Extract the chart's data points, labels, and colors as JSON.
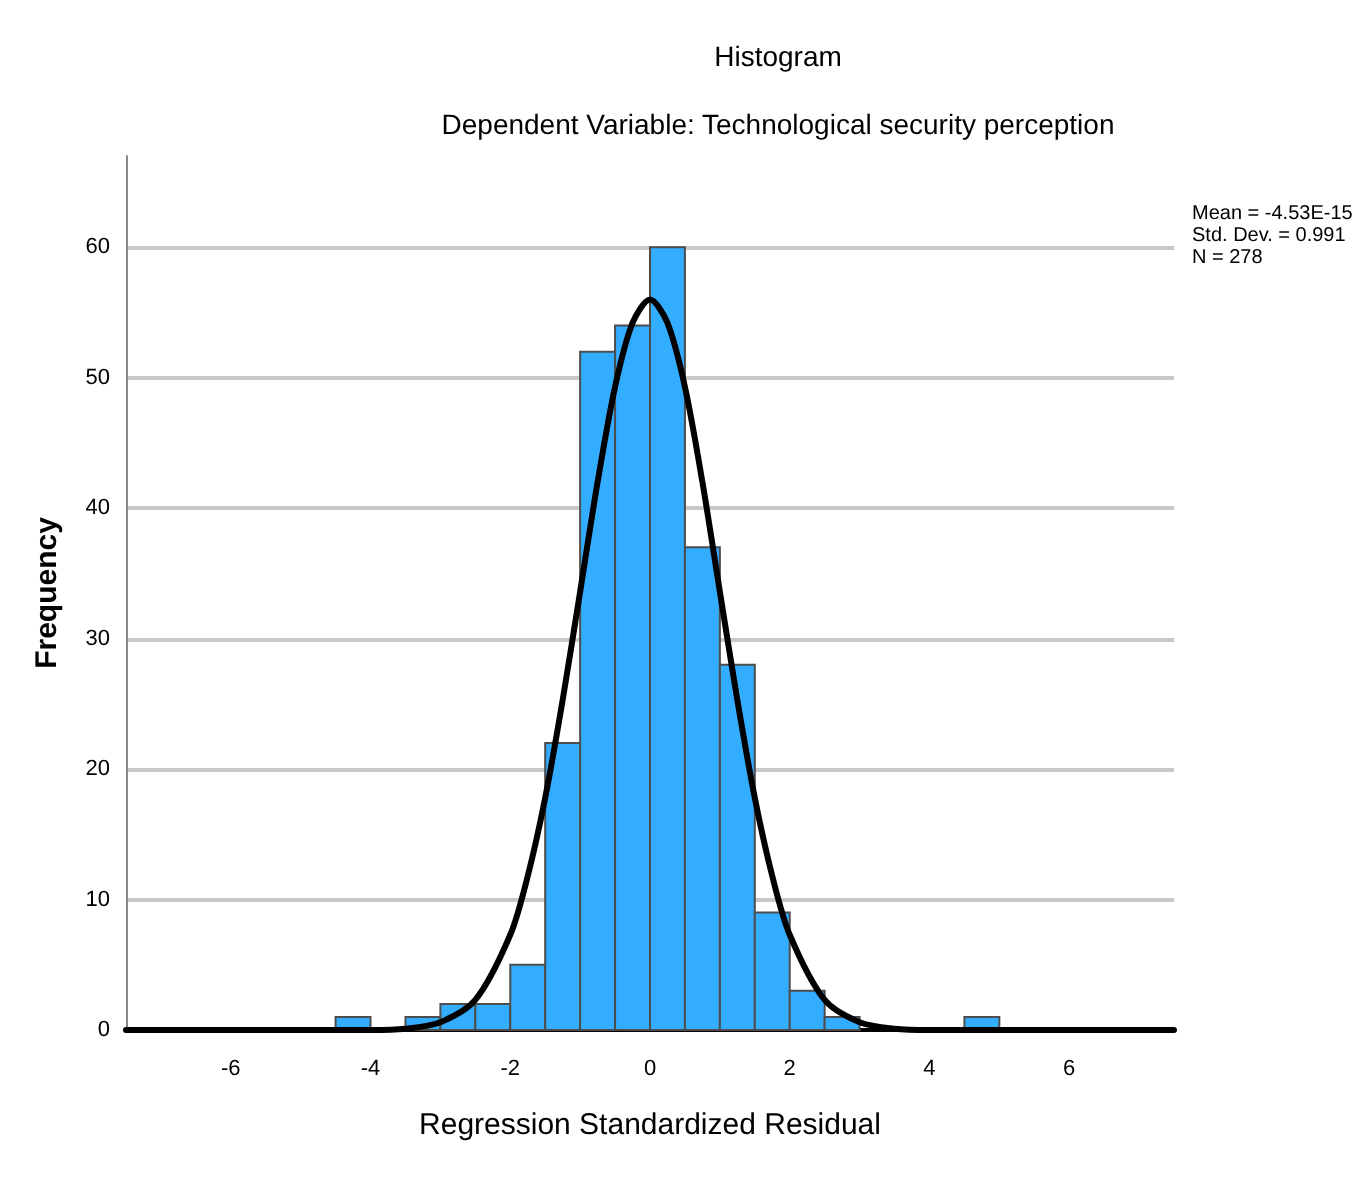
{
  "chart_data": {
    "type": "histogram",
    "title": "Histogram",
    "subtitle": "Dependent Variable: Technological security perception",
    "xlabel": "Regression Standardized Residual",
    "ylabel": "Frequency",
    "bins": [
      -4.5,
      -4,
      -3.5,
      -3,
      -2.5,
      -2,
      -1.5,
      -1,
      -0.5,
      0,
      0.5,
      1,
      1.5,
      2,
      2.5,
      3,
      3.5,
      4,
      4.5,
      5
    ],
    "values": [
      1,
      0,
      1,
      2,
      2,
      5,
      22,
      52,
      54,
      60,
      37,
      28,
      9,
      3,
      1,
      0,
      0,
      0,
      1
    ],
    "color": "#33adff",
    "series": [
      {
        "type": "line",
        "color": "#000000",
        "x": [
          -7.5,
          -6,
          -5,
          -4,
          -3.5,
          -3,
          -2.5,
          -2,
          -1.75,
          -1.5,
          -1.25,
          -1,
          -0.75,
          -0.5,
          -0.25,
          0,
          0.25,
          0.5,
          0.75,
          1,
          1.25,
          1.5,
          1.75,
          2,
          2.5,
          3,
          3.5,
          4,
          5,
          6,
          7.5
        ],
        "values": [
          0,
          0,
          0,
          0,
          0.1,
          0.6,
          2.3,
          7.3,
          11.8,
          17.8,
          25.3,
          33.6,
          42,
          49.3,
          54.2,
          56,
          54.2,
          49.3,
          42,
          33.6,
          25.3,
          17.8,
          11.8,
          7.3,
          2.3,
          0.6,
          0.1,
          0,
          0,
          0,
          0
        ]
      }
    ],
    "xlim": [
      -7.5,
      7.5
    ],
    "xticks": [
      -6,
      -4,
      -2,
      0,
      2,
      4,
      6
    ],
    "ylim": [
      0,
      67
    ],
    "yticks": [
      0,
      10,
      20,
      30,
      40,
      50,
      60
    ],
    "grid": "y",
    "marker": "none",
    "line_style": "solid",
    "annotations": [
      "Mean = -4.53E-15",
      "Std. Dev. = 0.991",
      "N = 278"
    ]
  }
}
